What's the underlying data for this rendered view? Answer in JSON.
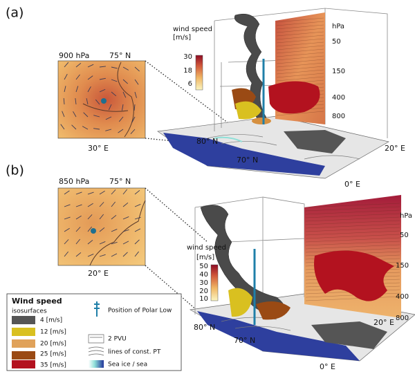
{
  "panels": [
    {
      "label": "(a)",
      "inset": {
        "level": "900 hPa",
        "lat": "75° N",
        "lon": "30° E"
      },
      "colorbar": {
        "title": "wind speed",
        "unit": "[m/s]",
        "ticks": [
          "30",
          "18",
          "6"
        ]
      },
      "pressure_axis": {
        "unit": "hPa",
        "ticks": [
          "50",
          "150",
          "400",
          "800"
        ]
      },
      "map_labels": [
        "80° N",
        "70° N",
        "20° E",
        "0° E"
      ]
    },
    {
      "label": "(b)",
      "inset": {
        "level": "850 hPa",
        "lat": "75° N",
        "lon": "20° E"
      },
      "colorbar": {
        "title": "wind speed",
        "unit": "[m/s]",
        "ticks": [
          "50",
          "40",
          "30",
          "20",
          "10"
        ]
      },
      "pressure_axis": {
        "unit": "hPa",
        "ticks": [
          "50",
          "150",
          "400",
          "800"
        ]
      },
      "map_labels": [
        "80° N",
        "70° N",
        "20° E",
        "0° E"
      ]
    }
  ],
  "legend": {
    "title": "Wind speed",
    "subtitle": "isosurfaces",
    "isosurfaces": [
      "4 [m/s]",
      "12 [m/s]",
      "20 [m/s]",
      "25 [m/s]",
      "35 [m/s]"
    ],
    "items": [
      "Position of Polar Low",
      "2 PVU",
      "lines of const. PT",
      "Sea ice / sea"
    ]
  }
}
